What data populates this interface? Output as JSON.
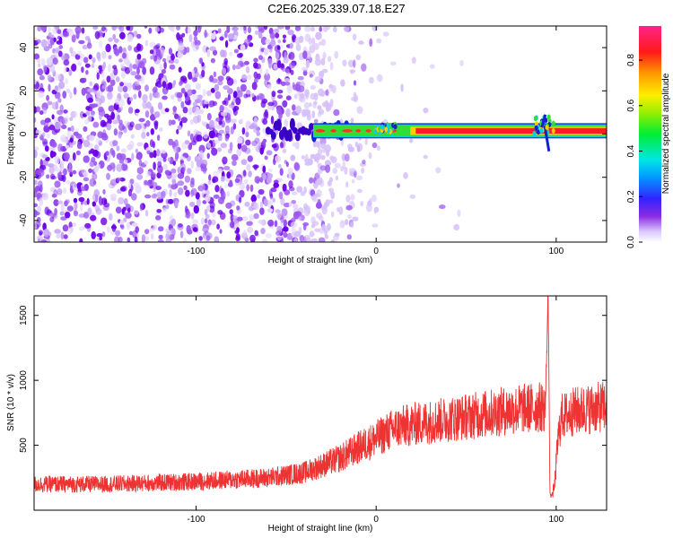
{
  "title": "C2E6.2025.339.07.18.E27",
  "colors": {
    "snr_line": "#ee3333",
    "spectrogram_low": "#e0d0ff",
    "spectrogram_mid": "#6a00e8",
    "signal_band_red": "#ff1a2a"
  },
  "chart_data": [
    {
      "type": "heatmap",
      "name": "spectrogram",
      "title": "",
      "xlabel": "Height of straight line (km)",
      "ylabel": "Frequency (Hz)",
      "xlim": [
        -190,
        128
      ],
      "ylim": [
        -50,
        50
      ],
      "xticks": [
        -100,
        0,
        100
      ],
      "yticks": [
        -40,
        -20,
        0,
        20,
        40
      ],
      "xtick_labels": [
        "-100",
        "0",
        "100"
      ],
      "ytick_labels": [
        "-40",
        "-20",
        "0",
        "20",
        "40"
      ],
      "signal_band": {
        "center_hz": 1.5,
        "half_width_hz": 2.5,
        "starts_km": -35
      },
      "disturbances_km": [
        5,
        93
      ],
      "noise_fades_by_km": 10,
      "colorbar": {
        "label": "Normalized spectral amplitude",
        "range": [
          0,
          0.95
        ],
        "ticks": [
          0.0,
          0.2,
          0.4,
          0.6,
          0.8
        ],
        "tick_labels": [
          "0.0",
          "0.2",
          "0.4",
          "0.6",
          "0.8"
        ]
      }
    },
    {
      "type": "line",
      "name": "snr",
      "title": "",
      "xlabel": "Height of straight line (km)",
      "ylabel": "SNR (10 * v/v)",
      "xlim": [
        -190,
        128
      ],
      "ylim": [
        0,
        1650
      ],
      "xticks": [
        -100,
        0,
        100
      ],
      "yticks": [
        500,
        1000,
        1500
      ],
      "xtick_labels": [
        "-100",
        "0",
        "100"
      ],
      "ytick_labels": [
        "500",
        "1000",
        "1500"
      ],
      "series": [
        {
          "name": "SNR",
          "x": [
            -190,
            -150,
            -100,
            -60,
            -40,
            -20,
            -10,
            0,
            10,
            20,
            40,
            60,
            80,
            90,
            94,
            95.5,
            96,
            96.5,
            97,
            99,
            101,
            103,
            110,
            128
          ],
          "y": [
            200,
            200,
            220,
            250,
            290,
            400,
            480,
            550,
            630,
            660,
            700,
            740,
            780,
            790,
            800,
            1650,
            1100,
            150,
            100,
            170,
            550,
            720,
            760,
            800
          ]
        }
      ]
    }
  ]
}
